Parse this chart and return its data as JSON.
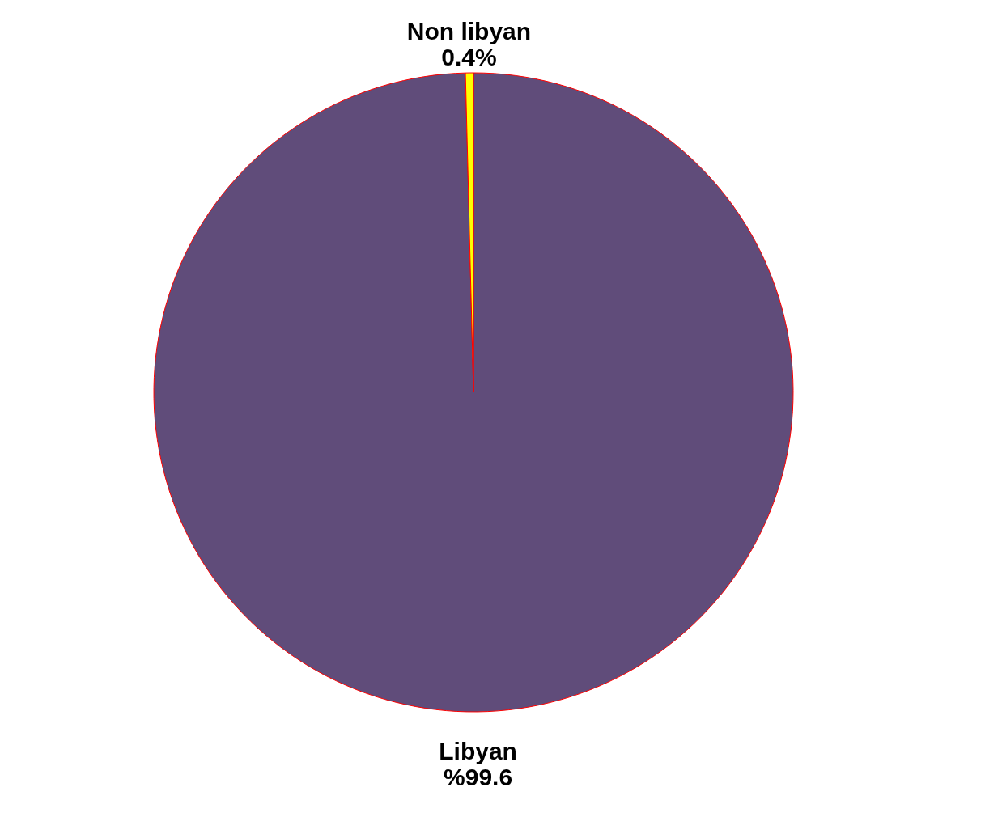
{
  "chart_data": {
    "type": "pie",
    "categories": [
      "Libyan",
      "Non libyan"
    ],
    "values": [
      99.6,
      0.4
    ],
    "colors": [
      "#604c7a",
      "#ffff00"
    ],
    "value_labels": [
      "%99.6",
      "0.4%"
    ]
  }
}
